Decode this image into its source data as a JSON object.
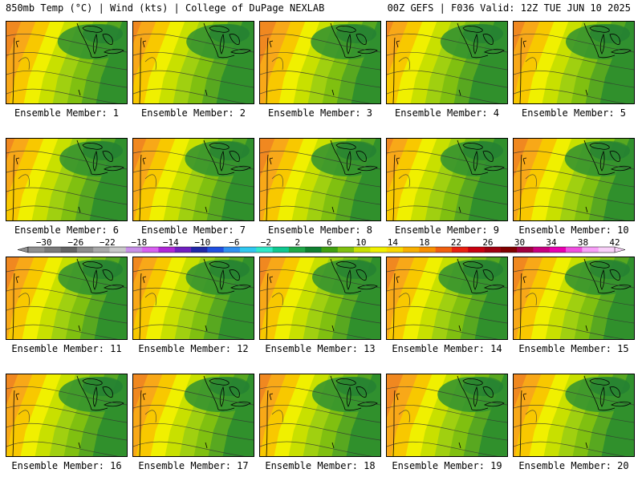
{
  "header": {
    "left": "850mb Temp (°C) | Wind (kts) | College of DuPage NEXLAB",
    "right": "00Z GEFS | F036 Valid: 12Z TUE JUN 10 2025"
  },
  "panel_label_prefix": "Ensemble Member: ",
  "members": [
    {
      "num": "1",
      "warmth": 0.55
    },
    {
      "num": "2",
      "warmth": 0.35
    },
    {
      "num": "3",
      "warmth": 0.6
    },
    {
      "num": "4",
      "warmth": 0.3
    },
    {
      "num": "5",
      "warmth": 0.45
    },
    {
      "num": "6",
      "warmth": 0.35
    },
    {
      "num": "7",
      "warmth": 0.5
    },
    {
      "num": "8",
      "warmth": 0.55
    },
    {
      "num": "9",
      "warmth": 0.3
    },
    {
      "num": "10",
      "warmth": 0.55
    },
    {
      "num": "11",
      "warmth": 0.5
    },
    {
      "num": "12",
      "warmth": 0.4
    },
    {
      "num": "13",
      "warmth": 0.45
    },
    {
      "num": "14",
      "warmth": 0.5
    },
    {
      "num": "15",
      "warmth": 0.55
    },
    {
      "num": "16",
      "warmth": 0.45
    },
    {
      "num": "17",
      "warmth": 0.55
    },
    {
      "num": "18",
      "warmth": 0.45
    },
    {
      "num": "19",
      "warmth": 0.6
    },
    {
      "num": "20",
      "warmth": 0.5
    }
  ],
  "colorbar": {
    "tick_labels": [
      "-30",
      "-26",
      "-22",
      "-18",
      "-14",
      "-10",
      "-6",
      "-2",
      "2",
      "6",
      "10",
      "14",
      "18",
      "22",
      "26",
      "30",
      "34",
      "38",
      "42"
    ],
    "colors": [
      "#909090",
      "#7a7a7a",
      "#646464",
      "#8c8c8c",
      "#a8a8a8",
      "#c8c8c8",
      "#c890e8",
      "#d860f0",
      "#b028d8",
      "#7020c0",
      "#2028a8",
      "#2050e0",
      "#3090f0",
      "#30c8f0",
      "#30e8c8",
      "#10c890",
      "#20a848",
      "#108030",
      "#40a010",
      "#80c010",
      "#c8e000",
      "#f0f000",
      "#f8d800",
      "#f8b000",
      "#f89000",
      "#f06010",
      "#e82010",
      "#c80010",
      "#a00010",
      "#800000",
      "#a00040",
      "#c80080",
      "#e800b0",
      "#f050e0",
      "#f8a0f8",
      "#f8d0f8"
    ],
    "vmin": -32,
    "vmax": 42
  }
}
